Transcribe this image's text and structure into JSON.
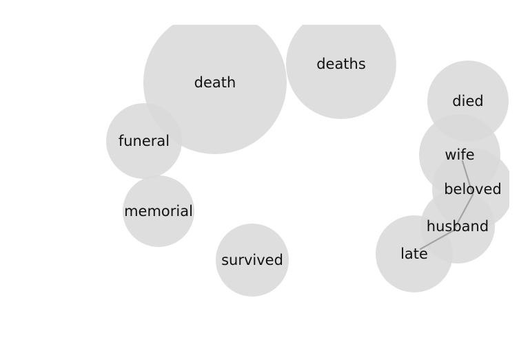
{
  "diagram": {
    "type": "word-bubble-network",
    "colors": {
      "bubble": "#d9d9d9",
      "edge": "#a3a3a3",
      "label": "#111111",
      "background": "#ffffff"
    },
    "words": [
      {
        "id": "death",
        "label": "death"
      },
      {
        "id": "deaths",
        "label": "deaths"
      },
      {
        "id": "died",
        "label": "died"
      },
      {
        "id": "funeral",
        "label": "funeral"
      },
      {
        "id": "wife",
        "label": "wife"
      },
      {
        "id": "beloved",
        "label": "beloved"
      },
      {
        "id": "memorial",
        "label": "memorial"
      },
      {
        "id": "husband",
        "label": "husband"
      },
      {
        "id": "late",
        "label": "late"
      },
      {
        "id": "survived",
        "label": "survived"
      }
    ],
    "links": [
      {
        "from": "wife",
        "to": "beloved"
      },
      {
        "from": "beloved",
        "to": "husband"
      },
      {
        "from": "husband",
        "to": "late"
      }
    ]
  }
}
